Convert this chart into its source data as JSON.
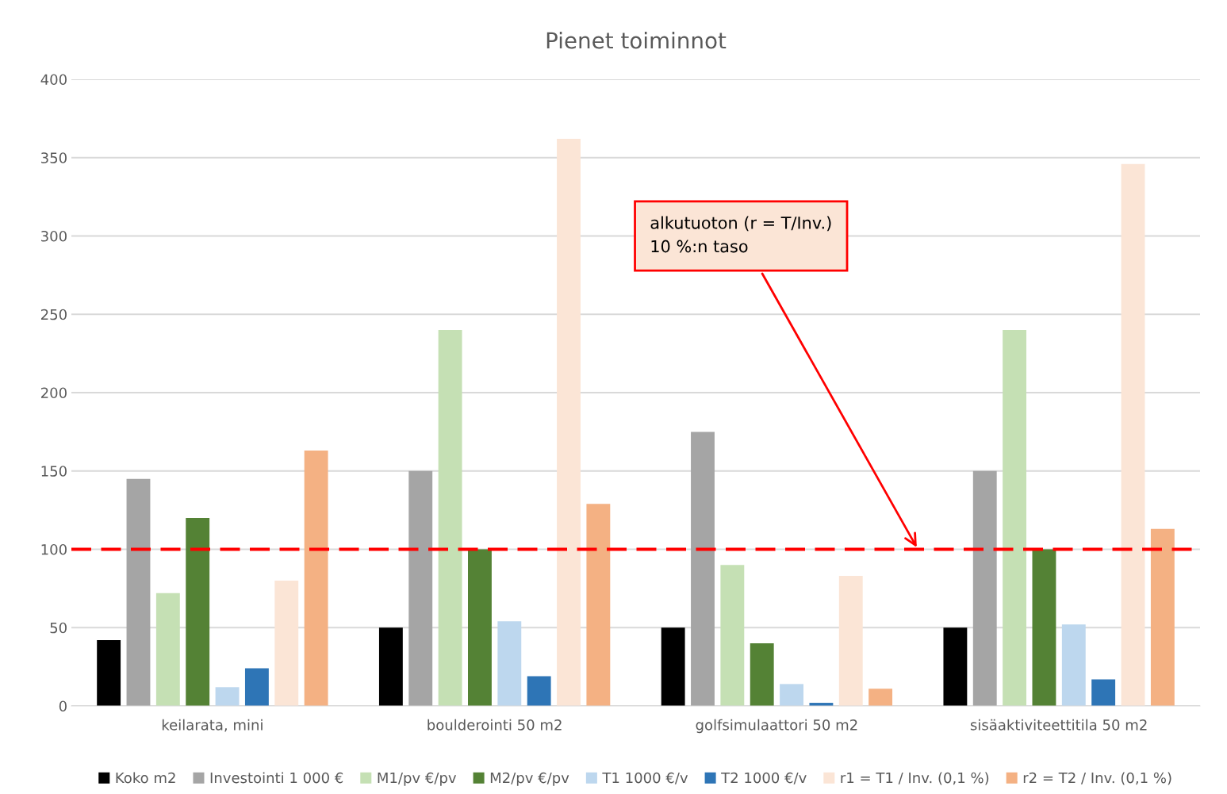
{
  "chart_data": {
    "type": "bar",
    "title": "Pienet toiminnot",
    "categories": [
      "keilarata, mini",
      "boulderointi 50 m2",
      "golfsimulaattori 50 m2",
      "sisäaktiviteettitila 50 m2"
    ],
    "series": [
      {
        "name": "Koko m2",
        "color": "#000000",
        "values": [
          42,
          50,
          50,
          50
        ]
      },
      {
        "name": "Investointi 1 000 €",
        "color": "#a5a5a5",
        "values": [
          145,
          150,
          175,
          150
        ]
      },
      {
        "name": "M1/pv €/pv",
        "color": "#c5e0b4",
        "values": [
          72,
          240,
          90,
          240
        ]
      },
      {
        "name": "M2/pv €/pv",
        "color": "#548235",
        "values": [
          120,
          100,
          40,
          100
        ]
      },
      {
        "name": "T1 1000 €/v",
        "color": "#bdd7ee",
        "values": [
          12,
          54,
          14,
          52
        ]
      },
      {
        "name": "T2 1000 €/v",
        "color": "#2e75b6",
        "values": [
          24,
          19,
          2,
          17
        ]
      },
      {
        "name": "r1 = T1 / Inv. (0,1 %)",
        "color": "#fbe5d6",
        "values": [
          80,
          362,
          83,
          346
        ]
      },
      {
        "name": "r2 = T2 / Inv. (0,1 %)",
        "color": "#f4b183",
        "values": [
          163,
          129,
          11,
          113
        ]
      }
    ],
    "ylim": [
      0,
      400
    ],
    "yticks": [
      0,
      50,
      100,
      150,
      200,
      250,
      300,
      350,
      400
    ],
    "grid": "y",
    "legend": "bottom",
    "ref_lines": [
      {
        "axis": "y",
        "value": 100,
        "label": "alkutuoton (r = T/Inv.)\n10 %:n taso",
        "color": "#ff0000",
        "line_style": "dashed"
      }
    ]
  }
}
